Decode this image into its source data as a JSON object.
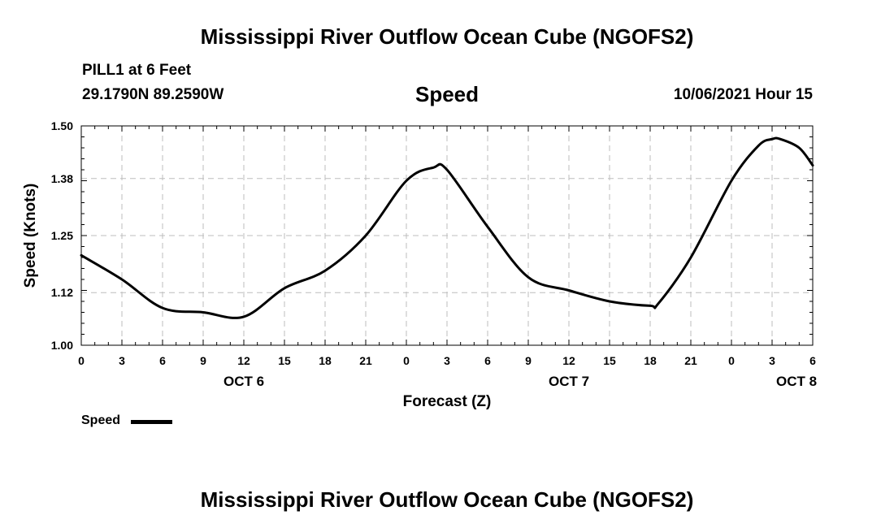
{
  "header": {
    "title": "Mississippi River Outflow Ocean Cube (NGOFS2)",
    "station": "PILL1 at 6 Feet",
    "coordinates": "29.1790N  89.2590W",
    "variable": "Speed",
    "timestamp": "10/06/2021 Hour 15"
  },
  "footer": {
    "title": "Mississippi River Outflow Ocean Cube (NGOFS2)"
  },
  "legend": {
    "label": "Speed"
  },
  "chart_data": {
    "type": "line",
    "title": "Speed",
    "xlabel": "Forecast (Z)",
    "ylabel": "Speed (Knots)",
    "xlim": [
      0,
      54
    ],
    "ylim": [
      1.0,
      1.5
    ],
    "grid": true,
    "y_ticks": [
      1.0,
      1.12,
      1.25,
      1.38,
      1.5
    ],
    "y_tick_labels": [
      "1.00",
      "1.12",
      "1.25",
      "1.38",
      "1.50"
    ],
    "x_ticks": [
      0,
      3,
      6,
      9,
      12,
      15,
      18,
      21,
      24,
      27,
      30,
      33,
      36,
      39,
      42,
      45,
      48,
      51,
      54
    ],
    "x_tick_labels": [
      "0",
      "3",
      "6",
      "9",
      "12",
      "15",
      "18",
      "21",
      "0",
      "3",
      "6",
      "9",
      "12",
      "15",
      "18",
      "21",
      "0",
      "3",
      "6"
    ],
    "date_labels": [
      {
        "x": 12,
        "label": "OCT 6"
      },
      {
        "x": 36,
        "label": "OCT 7"
      },
      {
        "x": 52.8,
        "label": "OCT 8"
      }
    ],
    "series": [
      {
        "name": "Speed",
        "color": "#000000",
        "x": [
          0,
          3,
          6,
          9,
          12,
          15,
          18,
          21,
          24,
          26,
          27,
          30,
          33,
          36,
          39,
          42,
          42.6,
          45,
          48,
          50,
          51,
          51.6,
          53,
          54
        ],
        "y": [
          1.205,
          1.15,
          1.085,
          1.075,
          1.065,
          1.13,
          1.17,
          1.25,
          1.375,
          1.405,
          1.4,
          1.27,
          1.155,
          1.125,
          1.1,
          1.09,
          1.095,
          1.2,
          1.375,
          1.455,
          1.47,
          1.47,
          1.45,
          1.41
        ]
      }
    ]
  }
}
